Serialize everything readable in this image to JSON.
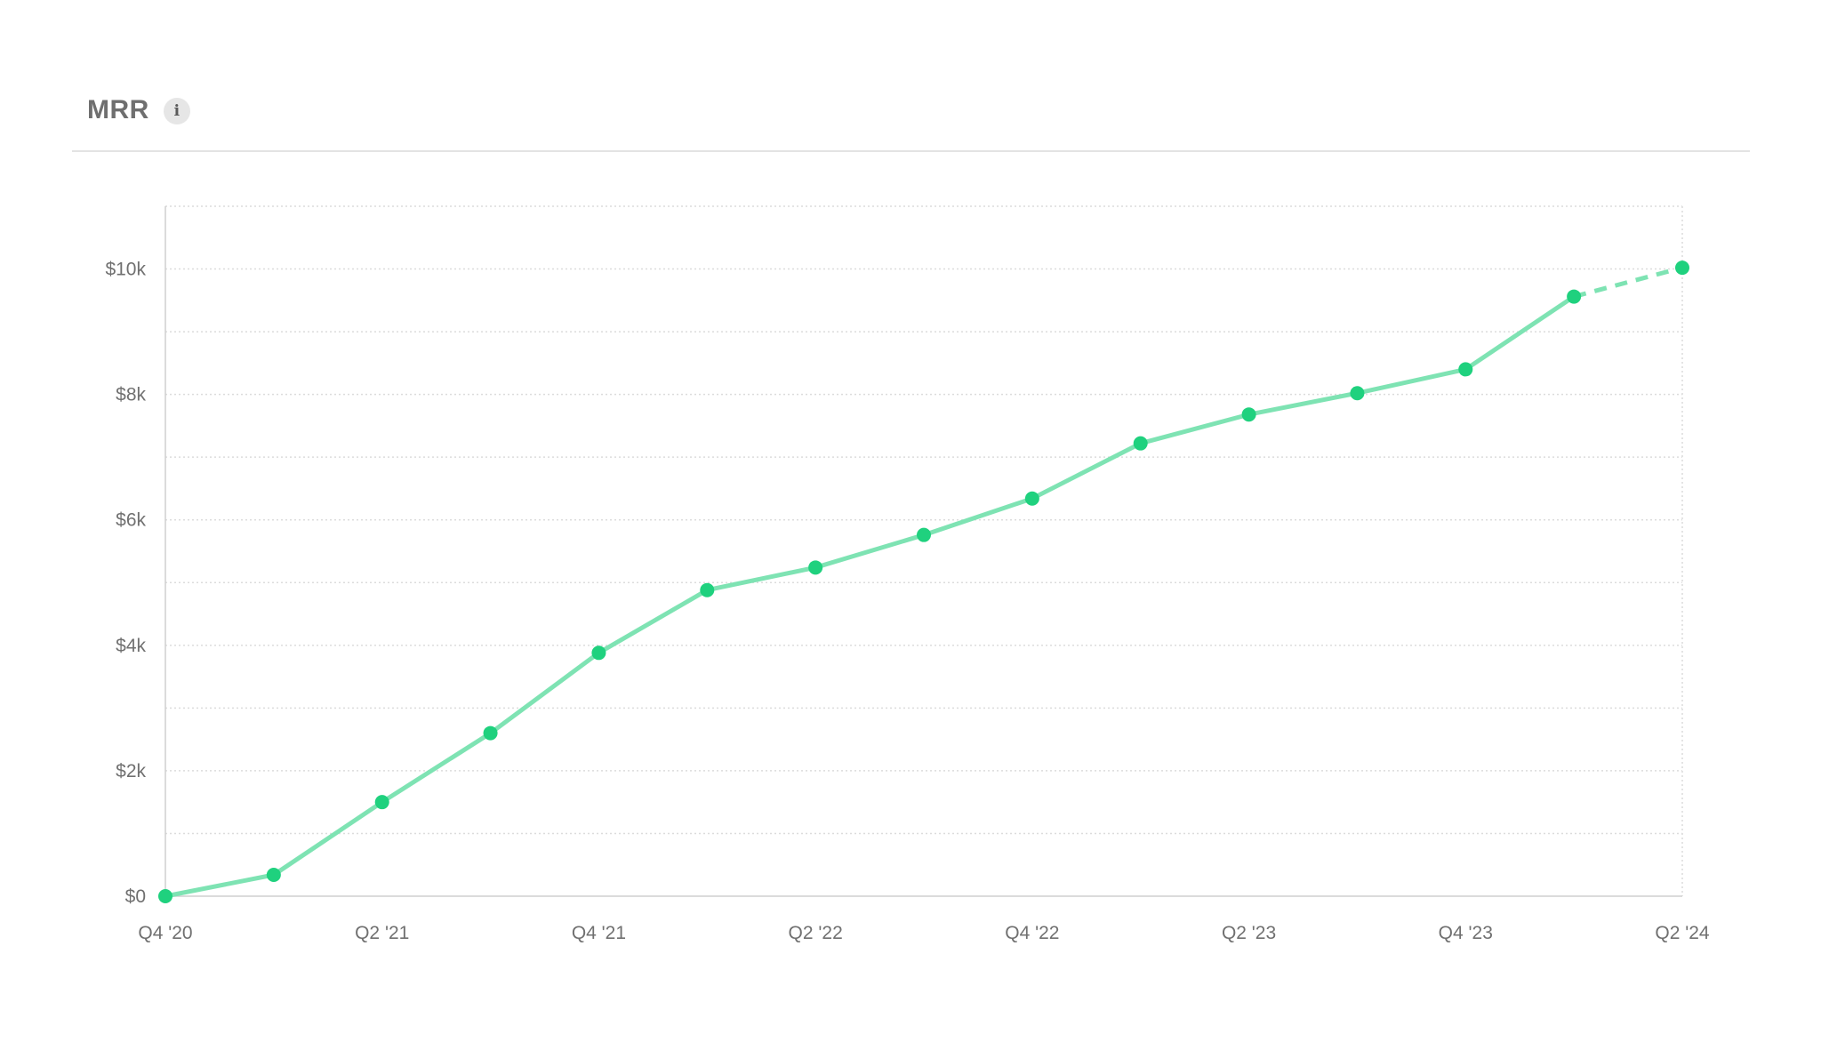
{
  "header": {
    "title": "MRR",
    "info_icon": "info-icon",
    "info_glyph": "i"
  },
  "colors": {
    "line": "#7ee3b3",
    "point": "#1fd17e",
    "grid": "#dcdcdc",
    "axis": "#cfcfcf"
  },
  "chart_data": {
    "type": "line",
    "title": "MRR",
    "xlabel": "",
    "ylabel": "",
    "x": [
      "Q4 '20",
      "Q1 '21",
      "Q2 '21",
      "Q3 '21",
      "Q4 '21",
      "Q1 '22",
      "Q2 '22",
      "Q3 '22",
      "Q4 '22",
      "Q1 '23",
      "Q2 '23",
      "Q3 '23",
      "Q4 '23",
      "Q1 '24",
      "Q2 '24"
    ],
    "x_tick_labels": [
      "Q4 '20",
      "Q2 '21",
      "Q4 '21",
      "Q2 '22",
      "Q4 '22",
      "Q2 '23",
      "Q4 '23",
      "Q2 '24"
    ],
    "values": [
      0,
      340,
      1500,
      2600,
      3880,
      4880,
      5240,
      5760,
      6340,
      7220,
      7680,
      8020,
      8400,
      9560,
      10020
    ],
    "projected_from_index": 13,
    "ylim": [
      0,
      11000
    ],
    "y_ticks": [
      0,
      2000,
      4000,
      6000,
      8000,
      10000
    ],
    "y_tick_labels": [
      "$0",
      "$2k",
      "$4k",
      "$6k",
      "$8k",
      "$10k"
    ],
    "grid": true,
    "grid_style": "dotted",
    "legend": "none"
  }
}
